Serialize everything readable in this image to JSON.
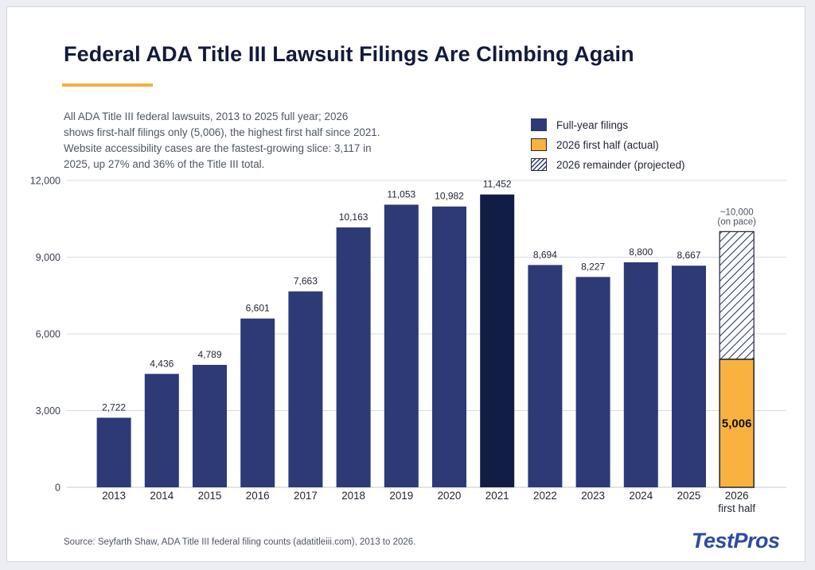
{
  "title": "Federal ADA Title III Lawsuit Filings Are Climbing Again",
  "subtitle_lines": [
    "All ADA Title III federal lawsuits, 2013 to 2025 full year; 2026",
    "shows first-half filings only (5,006), the highest first half since 2021.",
    "Website accessibility cases are the fastest-growing slice: 3,117 in",
    "2025, up 27% and 36% of the Title III total."
  ],
  "legend": [
    {
      "label": "Full-year filings",
      "icon": "solid-navy-swatch"
    },
    {
      "label": "2026 first half (actual)",
      "icon": "solid-orange-swatch"
    },
    {
      "label": "2026 remainder (projected)",
      "icon": "hatched-swatch"
    }
  ],
  "source": "Source: Seyfarth Shaw, ADA Title III federal filing counts (adatitleiii.com), 2013 to 2026.",
  "brand": "TestPros",
  "colors": {
    "full_year": "#2e3a76",
    "highlight_year": "#111d44",
    "first_half": "#f9b23f",
    "accent": "#f5b13d",
    "grid": "#d6dbe6",
    "text": "#1f2433"
  },
  "chart_data": {
    "type": "bar",
    "categories": [
      "2013",
      "2014",
      "2015",
      "2016",
      "2017",
      "2018",
      "2019",
      "2020",
      "2021",
      "2022",
      "2023",
      "2024",
      "2025"
    ],
    "series": [
      {
        "name": "Full-year filings",
        "values": [
          2722,
          4436,
          4789,
          6601,
          7663,
          10163,
          11053,
          10982,
          11452,
          8694,
          8227,
          8800,
          8667
        ],
        "labels": [
          "2,722",
          "4,436",
          "4,789",
          "6,601",
          "7,663",
          "10,163",
          "11,053",
          "10,982",
          "11,452",
          "8,694",
          "8,227",
          "8,800",
          "8,667"
        ]
      }
    ],
    "highlight_category": "2021",
    "partial_bar": {
      "category_lines": [
        "2026",
        "first half"
      ],
      "actual_name": "2026 first half (actual)",
      "actual_value": 5006,
      "actual_label": "5,006",
      "projected_name": "2026 remainder (projected)",
      "projected_total": 10000,
      "projected_label_lines": [
        "~10,000",
        "(on pace)"
      ]
    },
    "yticks": [
      0,
      3000,
      6000,
      9000,
      12000
    ],
    "ytick_labels": [
      "0",
      "3,000",
      "6,000",
      "9,000",
      "12,000"
    ],
    "ylim": [
      0,
      12000
    ],
    "grid": true,
    "legend_position": "top-right"
  }
}
